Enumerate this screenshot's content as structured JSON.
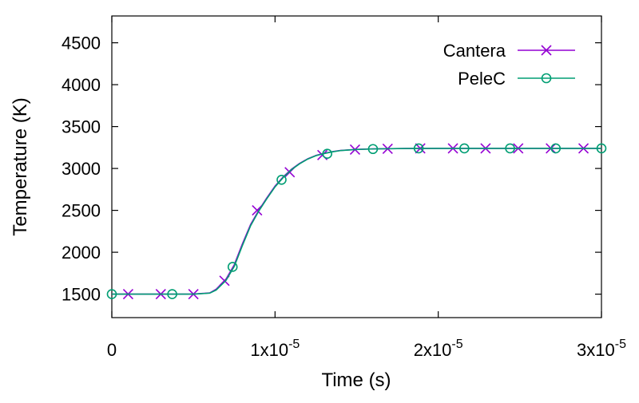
{
  "chart_data": {
    "type": "line",
    "xlabel": "Time (s)",
    "ylabel": "Temperature (K)",
    "xlim": [
      0,
      3e-05
    ],
    "ylim": [
      1220,
      4820
    ],
    "x_ticks": [
      {
        "value": 0,
        "label": "0",
        "exp": ""
      },
      {
        "value": 1e-05,
        "label": "1x10",
        "exp": "-5"
      },
      {
        "value": 2e-05,
        "label": "2x10",
        "exp": "-5"
      },
      {
        "value": 3e-05,
        "label": "3x10",
        "exp": "-5"
      }
    ],
    "y_ticks": [
      1500,
      2000,
      2500,
      3000,
      3500,
      4000,
      4500
    ],
    "grid": false,
    "legend_position": "top-right",
    "series": [
      {
        "name": "Cantera",
        "color": "#9400d3",
        "marker": "cross",
        "curve": {
          "x": [
            0,
            5e-06,
            6e-06,
            6.4e-06,
            7e-06,
            7.5e-06,
            8e-06,
            8.5e-06,
            9e-06,
            9.5e-06,
            1e-05,
            1.05e-05,
            1.1e-05,
            1.15e-05,
            1.2e-05,
            1.25e-05,
            1.3e-05,
            1.35e-05,
            1.4e-05,
            1.5e-05,
            1.6e-05,
            1.8e-05,
            2e-05,
            2.5e-05,
            3e-05
          ],
          "y": [
            1500,
            1500,
            1515,
            1560,
            1680,
            1850,
            2100,
            2330,
            2500,
            2650,
            2790,
            2900,
            2990,
            3060,
            3115,
            3155,
            3180,
            3200,
            3215,
            3228,
            3234,
            3238,
            3240,
            3240,
            3240
          ]
        },
        "markers": {
          "x": [
            1e-06,
            3e-06,
            5e-06,
            6.9e-06,
            8.9e-06,
            1.09e-05,
            1.29e-05,
            1.49e-05,
            1.69e-05,
            1.89e-05,
            2.09e-05,
            2.29e-05,
            2.49e-05,
            2.69e-05,
            2.89e-05
          ],
          "y": [
            1500,
            1500,
            1500,
            1660,
            2500,
            2955,
            3160,
            3225,
            3235,
            3240,
            3240,
            3240,
            3240,
            3240,
            3240
          ]
        }
      },
      {
        "name": "PeleC",
        "color": "#009e73",
        "marker": "circle",
        "curve": {
          "x": [
            0,
            5e-06,
            6e-06,
            6.4e-06,
            7e-06,
            7.5e-06,
            8e-06,
            8.5e-06,
            9e-06,
            9.5e-06,
            1e-05,
            1.05e-05,
            1.1e-05,
            1.15e-05,
            1.2e-05,
            1.25e-05,
            1.3e-05,
            1.35e-05,
            1.4e-05,
            1.5e-05,
            1.6e-05,
            1.8e-05,
            2e-05,
            2.5e-05,
            3e-05
          ],
          "y": [
            1500,
            1500,
            1512,
            1550,
            1665,
            1830,
            2080,
            2315,
            2490,
            2640,
            2780,
            2892,
            2985,
            3055,
            3112,
            3152,
            3178,
            3198,
            3213,
            3227,
            3233,
            3238,
            3240,
            3240,
            3240
          ]
        },
        "markers": {
          "x": [
            0,
            3.7e-06,
            7.4e-06,
            1.04e-05,
            1.32e-05,
            1.6e-05,
            1.88e-05,
            2.16e-05,
            2.44e-05,
            2.72e-05,
            3e-05
          ],
          "y": [
            1500,
            1500,
            1825,
            2865,
            3175,
            3232,
            3240,
            3240,
            3240,
            3240,
            3240
          ]
        }
      }
    ]
  }
}
